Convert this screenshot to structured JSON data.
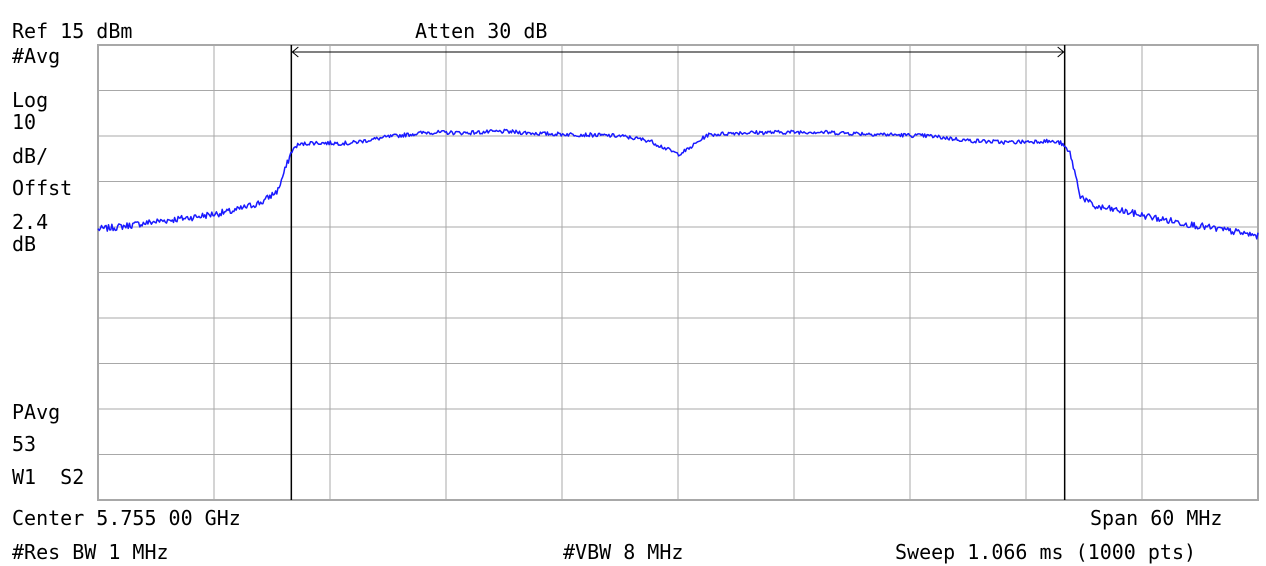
{
  "header": {
    "ref_level": "Ref 15 dBm",
    "attenuation": "Atten 30 dB"
  },
  "side_labels": {
    "avg": "#Avg",
    "log": "Log",
    "scale_value": "10",
    "scale_unit": "dB/",
    "offset_label": "Offst",
    "offset_value": "2.4",
    "offset_unit": "dB",
    "pavg": "PAvg",
    "pavg_count": "53",
    "trace_info": "W1  S2"
  },
  "footer": {
    "center": "Center 5.755 00 GHz",
    "span": "Span 60 MHz",
    "res_bw": "#Res BW 1 MHz",
    "vbw": "#VBW 8 MHz",
    "sweep": "Sweep 1.066 ms (1000 pts)"
  },
  "colors": {
    "trace": "#1a1aff",
    "grid": "#a8a8a8",
    "frame": "#000000",
    "background": "#ffffff"
  },
  "chart_data": {
    "type": "line",
    "xlabel": "",
    "ylabel": "",
    "x_unit": "MHz",
    "y_unit": "dBm",
    "xlim": [
      5725,
      5785
    ],
    "ylim": [
      -85,
      15
    ],
    "grid": true,
    "divisions": {
      "x": 10,
      "y": 10
    },
    "channel_markers": [
      5735,
      5775
    ],
    "series": [
      {
        "x": [
          5725,
          5726,
          5728,
          5730,
          5732,
          5733.5,
          5734.3,
          5735,
          5735.3,
          5736,
          5738,
          5740,
          5742,
          5744,
          5746,
          5748,
          5750,
          5752,
          5753.5,
          5754.5,
          5755,
          5755.5,
          5756.5,
          5758,
          5760,
          5762,
          5764,
          5766,
          5768,
          5770,
          5772,
          5774,
          5774.8,
          5775.3,
          5775.8,
          5776.5,
          5778,
          5780,
          5782,
          5784,
          5785
        ],
        "values": [
          -25.5,
          -25,
          -23.8,
          -22.8,
          -21.5,
          -19.5,
          -17,
          -8.5,
          -7,
          -6.5,
          -6.6,
          -5.2,
          -4.2,
          -4.3,
          -4,
          -4.5,
          -4.7,
          -5,
          -6,
          -8,
          -9,
          -8,
          -4.8,
          -4.3,
          -4.2,
          -4.1,
          -4.4,
          -4.7,
          -5,
          -6,
          -6.4,
          -6.1,
          -6.5,
          -9,
          -18,
          -20.5,
          -21.5,
          -23.3,
          -24.8,
          -26.2,
          -27
        ]
      }
    ]
  }
}
